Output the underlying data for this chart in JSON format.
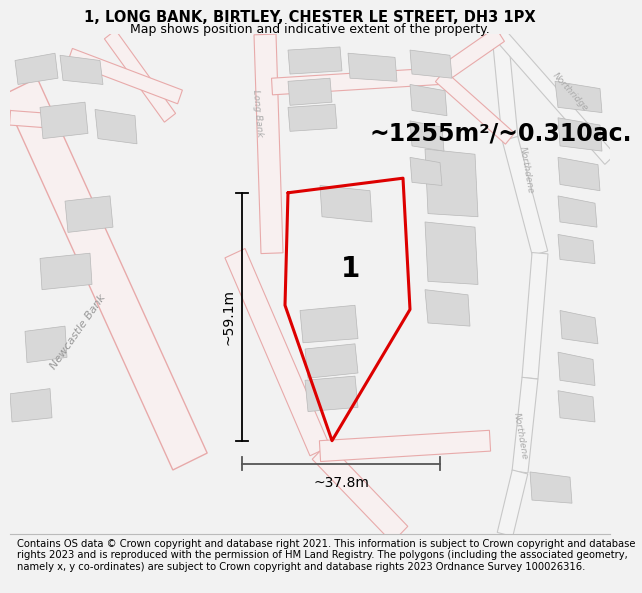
{
  "title_line1": "1, LONG BANK, BIRTLEY, CHESTER LE STREET, DH3 1PX",
  "title_line2": "Map shows position and indicative extent of the property.",
  "area_text": "~1255m²/~0.310ac.",
  "dim_height": "~59.1m",
  "dim_width": "~37.8m",
  "label_number": "1",
  "road_label_newcastle": "Newcastle Bank",
  "road_label_long": "Long Bank",
  "road_label_northdene1": "Northdene",
  "road_label_northdene2": "Northdene",
  "road_label_northridge": "Northridge",
  "footer_text": "Contains OS data © Crown copyright and database right 2021. This information is subject to Crown copyright and database rights 2023 and is reproduced with the permission of HM Land Registry. The polygons (including the associated geometry, namely x, y co-ordinates) are subject to Crown copyright and database rights 2023 Ordnance Survey 100026316.",
  "bg_color": "#f2f2f2",
  "map_bg": "#ffffff",
  "plot_color": "#dd0000",
  "road_outline_color": "#e8aaaa",
  "road_fill_color": "#f8f0f0",
  "road_gray_color": "#c8c8c8",
  "building_fill": "#d8d8d8",
  "building_edge": "#b8b8b8",
  "title_fontsize": 10.5,
  "subtitle_fontsize": 9,
  "area_fontsize": 17,
  "dim_fontsize": 10,
  "footer_fontsize": 7.2,
  "road_label_color": "#aaaaaa",
  "road_label_size": 7
}
